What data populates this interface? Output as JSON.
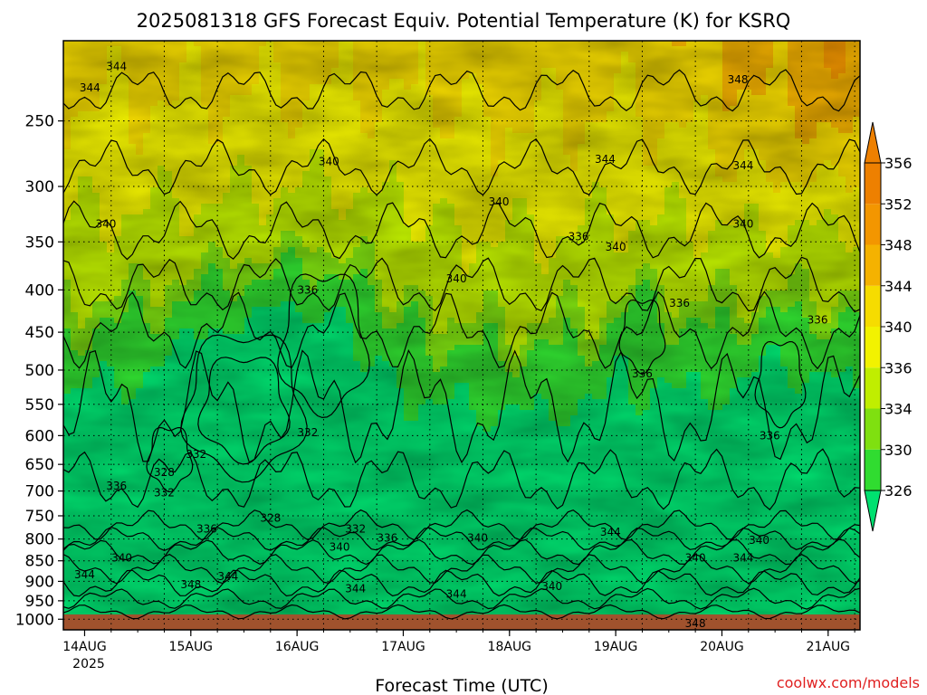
{
  "chart_data": {
    "type": "heatmap",
    "title": "2025081318 GFS Forecast Equiv. Potential Temperature (K) for KSRQ",
    "xlabel": "Forecast Time (UTC)",
    "credit": "coolwx.com/models",
    "x_ticks": [
      "14AUG",
      "15AUG",
      "16AUG",
      "17AUG",
      "18AUG",
      "19AUG",
      "20AUG",
      "21AUG"
    ],
    "x_year_label": "2025",
    "y_ticks": [
      250,
      300,
      350,
      400,
      450,
      500,
      550,
      600,
      650,
      700,
      750,
      800,
      850,
      900,
      950,
      1000
    ],
    "y_scale": "log",
    "y_reversed": true,
    "ylim": [
      200,
      1030
    ],
    "grid": true,
    "colorbar": {
      "levels": [
        326,
        330,
        334,
        336,
        340,
        344,
        348,
        352,
        356
      ],
      "colors": [
        "#00e070",
        "#30dc30",
        "#7fe010",
        "#c0ee00",
        "#f2f200",
        "#f6dc00",
        "#f5b200",
        "#f39600",
        "#ee8000"
      ]
    },
    "contour_labels": [
      {
        "text": "344",
        "x": 0.55,
        "p": 215
      },
      {
        "text": "344",
        "x": 0.3,
        "p": 228
      },
      {
        "text": "348",
        "x": 6.4,
        "p": 223
      },
      {
        "text": "340",
        "x": 2.55,
        "p": 280
      },
      {
        "text": "344",
        "x": 5.15,
        "p": 278
      },
      {
        "text": "344",
        "x": 6.45,
        "p": 283
      },
      {
        "text": "340",
        "x": 0.45,
        "p": 333
      },
      {
        "text": "340",
        "x": 4.15,
        "p": 313
      },
      {
        "text": "340",
        "x": 6.45,
        "p": 333
      },
      {
        "text": "336",
        "x": 4.9,
        "p": 345
      },
      {
        "text": "340",
        "x": 5.25,
        "p": 355
      },
      {
        "text": "340",
        "x": 3.75,
        "p": 388
      },
      {
        "text": "336",
        "x": 2.35,
        "p": 400
      },
      {
        "text": "336",
        "x": 5.85,
        "p": 415
      },
      {
        "text": "336",
        "x": 7.15,
        "p": 435
      },
      {
        "text": "336",
        "x": 5.5,
        "p": 505
      },
      {
        "text": "332",
        "x": 2.35,
        "p": 595
      },
      {
        "text": "336",
        "x": 6.7,
        "p": 600
      },
      {
        "text": "332",
        "x": 1.3,
        "p": 632
      },
      {
        "text": "328",
        "x": 1.0,
        "p": 665
      },
      {
        "text": "336",
        "x": 0.55,
        "p": 690
      },
      {
        "text": "332",
        "x": 1.0,
        "p": 703
      },
      {
        "text": "328",
        "x": 2.0,
        "p": 755
      },
      {
        "text": "332",
        "x": 2.8,
        "p": 778
      },
      {
        "text": "336",
        "x": 1.4,
        "p": 778
      },
      {
        "text": "336",
        "x": 3.1,
        "p": 798
      },
      {
        "text": "340",
        "x": 3.95,
        "p": 798
      },
      {
        "text": "344",
        "x": 5.2,
        "p": 785
      },
      {
        "text": "340",
        "x": 6.6,
        "p": 803
      },
      {
        "text": "340",
        "x": 2.65,
        "p": 818
      },
      {
        "text": "340",
        "x": 0.6,
        "p": 843
      },
      {
        "text": "340",
        "x": 6.0,
        "p": 843
      },
      {
        "text": "344",
        "x": 6.45,
        "p": 843
      },
      {
        "text": "344",
        "x": 0.25,
        "p": 883
      },
      {
        "text": "344",
        "x": 1.6,
        "p": 888
      },
      {
        "text": "348",
        "x": 1.25,
        "p": 908
      },
      {
        "text": "344",
        "x": 2.8,
        "p": 918
      },
      {
        "text": "340",
        "x": 4.65,
        "p": 913
      },
      {
        "text": "344",
        "x": 3.75,
        "p": 933
      },
      {
        "text": "348",
        "x": 6.0,
        "p": 1012
      }
    ]
  }
}
